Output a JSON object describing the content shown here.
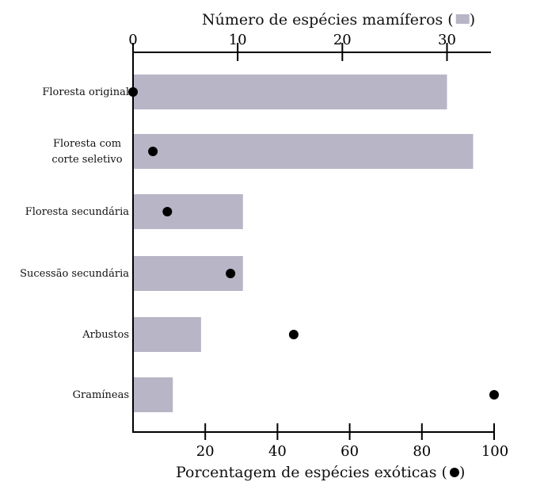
{
  "chart_data": {
    "type": "bar",
    "categories": [
      [
        "Floresta original"
      ],
      [
        "Floresta  com",
        "corte seletivo"
      ],
      [
        "Floresta  secundária"
      ],
      [
        "Sucessão  secundária"
      ],
      [
        "Arbustos"
      ],
      [
        "Gramíneas"
      ]
    ],
    "series": [
      {
        "values": [
          30,
          32.5,
          10.5,
          10.5,
          6.5,
          3.8
        ],
        "color": "#b8b5c6",
        "marker": "bar",
        "axis": "top"
      },
      {
        "values": [
          0,
          5.5,
          9.5,
          27,
          44.5,
          100
        ],
        "color": "#000000",
        "marker": "dot",
        "axis": "bottom"
      }
    ],
    "top_axis": {
      "title_prefix": "Número de espécies mamíferos (",
      "title_suffix": " )",
      "range": [
        0,
        34.2
      ],
      "ticks": [
        0,
        10,
        20,
        30
      ]
    },
    "bottom_axis": {
      "title_prefix": "Porcentagem de espécies exóticas (",
      "title_suffix": " )",
      "range": [
        0,
        100
      ],
      "ticks": [
        20,
        40,
        60,
        80,
        100
      ]
    },
    "grid": false
  }
}
